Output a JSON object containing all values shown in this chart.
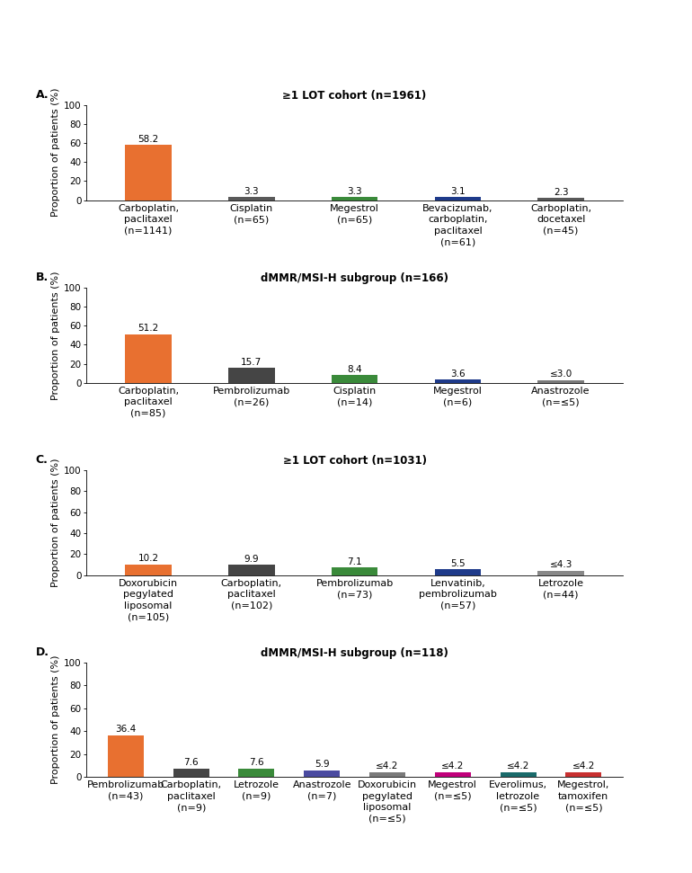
{
  "panels": [
    {
      "label": "A.",
      "title": "≥1 LOT cohort (n=1961)",
      "categories": [
        "Carboplatin,\npaclitaxel\n(n=1141)",
        "Cisplatin\n(n=65)",
        "Megestrol\n(n=65)",
        "Bevacizumab,\ncarboplatin,\npaclitaxel\n(n=61)",
        "Carboplatin,\ndocetaxel\n(n=45)"
      ],
      "values": [
        58.2,
        3.3,
        3.3,
        3.1,
        2.3
      ],
      "value_labels": [
        "58.2",
        "3.3",
        "3.3",
        "3.1",
        "2.3"
      ],
      "colors": [
        "#E87030",
        "#595959",
        "#3A8A3A",
        "#1E3A8A",
        "#595959"
      ],
      "ylim": [
        0,
        100
      ],
      "yticks": [
        0,
        20,
        40,
        60,
        80,
        100
      ]
    },
    {
      "label": "B.",
      "title": "dMMR/MSI-H subgroup (n=166)",
      "categories": [
        "Carboplatin,\npaclitaxel\n(n=85)",
        "Pembrolizumab\n(n=26)",
        "Cisplatin\n(n=14)",
        "Megestrol\n(n=6)",
        "Anastrozole\n(n=≤5)"
      ],
      "values": [
        51.2,
        15.7,
        8.4,
        3.6,
        3.0
      ],
      "value_labels": [
        "51.2",
        "15.7",
        "8.4",
        "3.6",
        "≤3.0"
      ],
      "colors": [
        "#E87030",
        "#454545",
        "#3A8A3A",
        "#1E3A8A",
        "#7A7A7A"
      ],
      "ylim": [
        0,
        100
      ],
      "yticks": [
        0,
        20,
        40,
        60,
        80,
        100
      ]
    },
    {
      "label": "C.",
      "title": "≥1 LOT cohort (n=1031)",
      "categories": [
        "Doxorubicin\npegylated\nliposomal\n(n=105)",
        "Carboplatin,\npaclitaxel\n(n=102)",
        "Pembrolizumab\n(n=73)",
        "Lenvatinib,\npembrolizumab\n(n=57)",
        "Letrozole\n(n=44)"
      ],
      "values": [
        10.2,
        9.9,
        7.1,
        5.5,
        4.3
      ],
      "value_labels": [
        "10.2",
        "9.9",
        "7.1",
        "5.5",
        "≤4.3"
      ],
      "colors": [
        "#E87030",
        "#454545",
        "#3A8A3A",
        "#1E3A8A",
        "#888888"
      ],
      "ylim": [
        0,
        100
      ],
      "yticks": [
        0,
        20,
        40,
        60,
        80,
        100
      ]
    },
    {
      "label": "D.",
      "title": "dMMR/MSI-H subgroup (n=118)",
      "categories": [
        "Pembrolizumab\n(n=43)",
        "Carboplatin,\npaclitaxel\n(n=9)",
        "Letrozole\n(n=9)",
        "Anastrozole\n(n=7)",
        "Doxorubicin\npegylated\nliposomal\n(n=≤5)",
        "Megestrol\n(n=≤5)",
        "Everolimus,\nletrozole\n(n=≤5)",
        "Megestrol,\ntamoxifen\n(n=≤5)"
      ],
      "values": [
        36.4,
        7.6,
        7.6,
        5.9,
        4.2,
        4.2,
        4.2,
        4.2
      ],
      "value_labels": [
        "36.4",
        "7.6",
        "7.6",
        "5.9",
        "≤4.2",
        "≤4.2",
        "≤4.2",
        "≤4.2"
      ],
      "colors": [
        "#E87030",
        "#454545",
        "#3A8A3A",
        "#4A4AA0",
        "#7A7A7A",
        "#C0007A",
        "#1A6B6B",
        "#C83030"
      ],
      "ylim": [
        0,
        100
      ],
      "yticks": [
        0,
        20,
        40,
        60,
        80,
        100
      ]
    }
  ],
  "ylabel": "Proportion of patients (%)",
  "background_color": "#ffffff",
  "label_fontsize": 8,
  "title_fontsize": 8.5,
  "tick_fontsize": 7.5,
  "value_fontsize": 7.5,
  "panel_label_fontsize": 9
}
